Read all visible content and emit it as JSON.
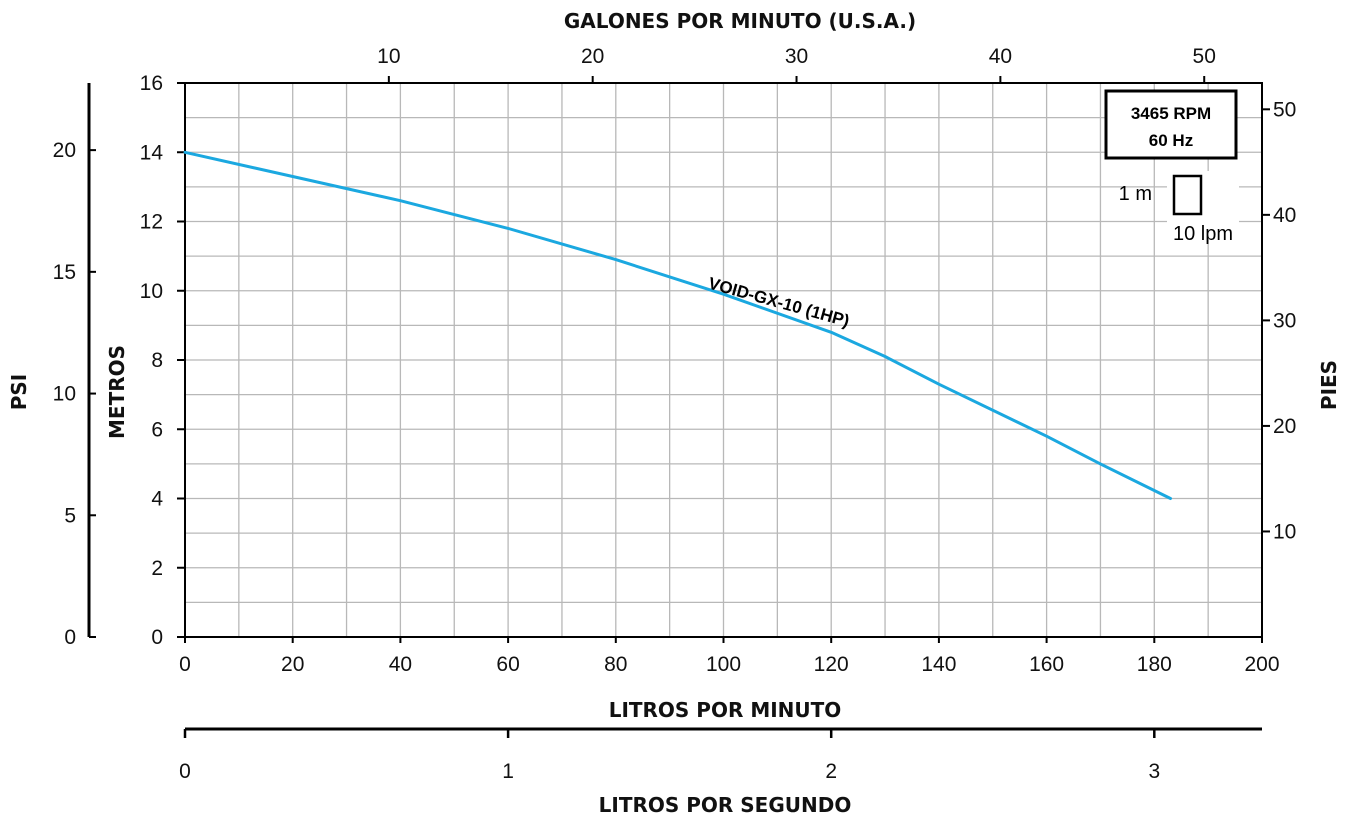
{
  "chart_data": {
    "type": "line",
    "title": "",
    "xlabel": "LITROS POR MINUTO",
    "ylabel": "METROS",
    "xlim": [
      0,
      200
    ],
    "ylim": [
      0,
      16
    ],
    "x_ticks": [
      "0",
      "20",
      "40",
      "60",
      "80",
      "100",
      "120",
      "140",
      "160",
      "180",
      "200"
    ],
    "y_ticks": [
      "0",
      "2",
      "4",
      "6",
      "8",
      "10",
      "12",
      "14",
      "16"
    ],
    "grid": true,
    "series": [
      {
        "name": "VOID-GX-10 (1HP)",
        "color": "#1ba8e0",
        "x": [
          0,
          20,
          40,
          60,
          80,
          100,
          120,
          130,
          140,
          160,
          170,
          183
        ],
        "y": [
          14.0,
          13.3,
          12.6,
          11.8,
          10.9,
          9.9,
          8.8,
          8.1,
          7.3,
          5.8,
          5.0,
          4.0
        ]
      }
    ],
    "secondary_axes": {
      "top": {
        "label": "GALONES POR MINUTO (U.S.A.)",
        "ticks": [
          "10",
          "20",
          "30",
          "40",
          "50"
        ],
        "values": [
          10,
          20,
          30,
          40,
          50
        ]
      },
      "right": {
        "label": "PIES",
        "ticks": [
          "10",
          "20",
          "30",
          "40",
          "50"
        ],
        "values": [
          10,
          20,
          30,
          40,
          50
        ]
      },
      "far_left": {
        "label": "PSI",
        "ticks": [
          "0",
          "5",
          "10",
          "15",
          "20"
        ],
        "values": [
          0,
          5,
          10,
          15,
          20
        ]
      },
      "bottom2": {
        "label": "LITROS POR SEGUNDO",
        "ticks": [
          "0",
          "1",
          "2",
          "3"
        ],
        "values": [
          0,
          1,
          2,
          3
        ]
      }
    },
    "annotations": {
      "speed_box": [
        "3465 RPM",
        "60 Hz"
      ],
      "scale_v": "1 m",
      "scale_h": "10 lpm"
    }
  }
}
